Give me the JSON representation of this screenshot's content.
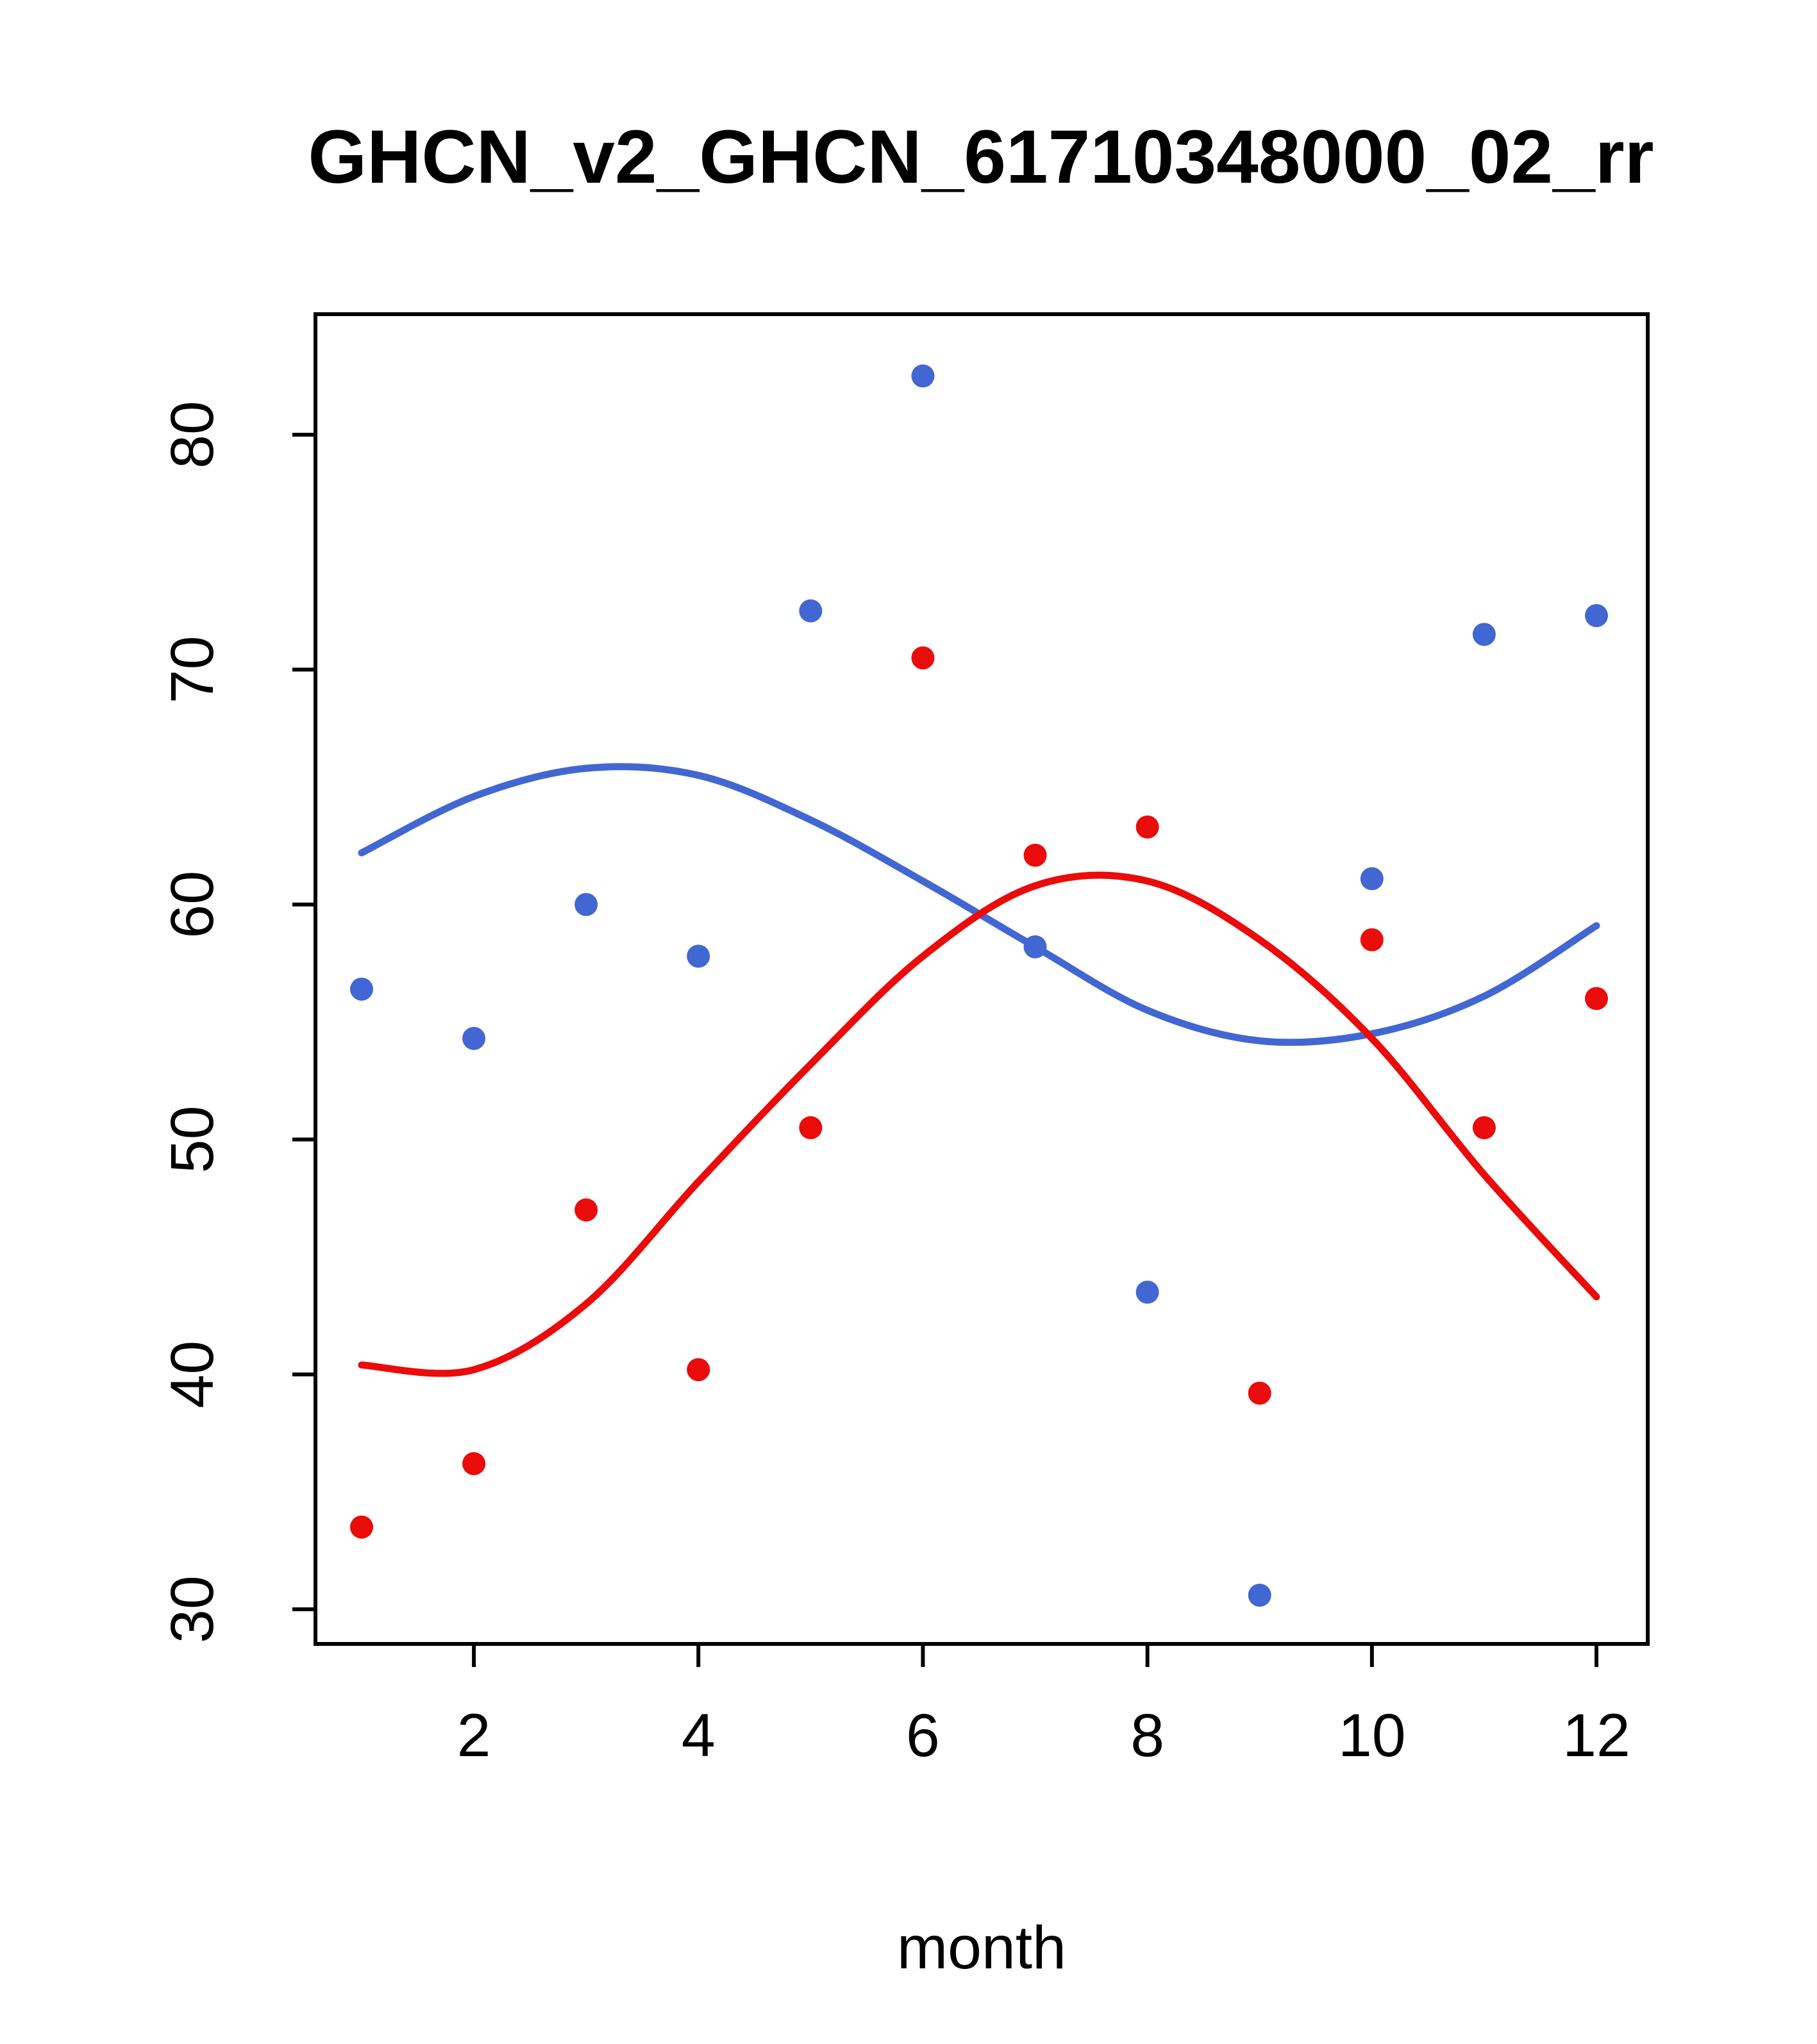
{
  "title": "GHCN_v2_GHCN_61710348000_02_rr",
  "chart_data": {
    "type": "scatter",
    "title": "GHCN_v2_GHCN_61710348000_02_rr",
    "xlabel": "month",
    "ylabel": "",
    "xlim": [
      0.56,
      12.44
    ],
    "ylim": [
      28.5,
      84.5
    ],
    "x_ticks": [
      2,
      4,
      6,
      8,
      10,
      12
    ],
    "y_ticks": [
      30,
      40,
      50,
      60,
      70,
      80
    ],
    "grid": "off",
    "legend": "none",
    "x": [
      1,
      2,
      3,
      4,
      5,
      6,
      7,
      8,
      9,
      10,
      11,
      12
    ],
    "series": [
      {
        "name": "blue-points",
        "kind": "points",
        "color": "#4267D2",
        "values": [
          56.4,
          54.3,
          60.0,
          57.8,
          72.5,
          82.5,
          58.2,
          43.5,
          30.6,
          61.1,
          71.5,
          72.3
        ]
      },
      {
        "name": "red-points",
        "kind": "points",
        "color": "#EA0B0B",
        "values": [
          33.5,
          36.2,
          47.0,
          40.2,
          50.5,
          70.5,
          62.1,
          63.3,
          39.2,
          58.5,
          50.5,
          56.0
        ]
      },
      {
        "name": "blue-smooth-line",
        "kind": "line",
        "color": "#4267D2",
        "values": [
          62.2,
          64.6,
          65.8,
          65.5,
          63.6,
          61.0,
          58.2,
          55.5,
          54.2,
          54.5,
          56.1,
          59.1
        ]
      },
      {
        "name": "red-smooth-line",
        "kind": "line",
        "color": "#EA0B0B",
        "values": [
          40.4,
          40.2,
          43.0,
          48.2,
          53.2,
          57.8,
          60.8,
          61.0,
          58.5,
          54.3,
          48.5,
          43.3
        ]
      }
    ]
  }
}
